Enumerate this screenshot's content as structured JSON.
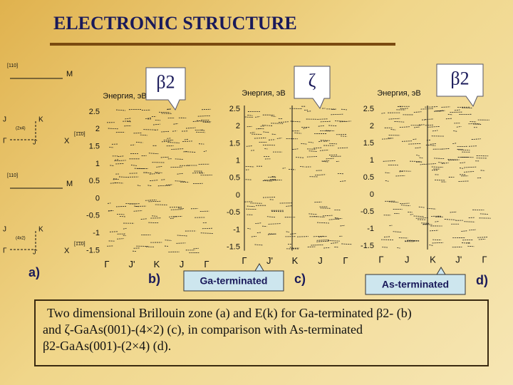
{
  "title": "ELECTRONIC STRUCTURE",
  "zones": [
    {
      "axis": "[110]",
      "top_right": "M",
      "left_mid": "J",
      "right_mid": "K",
      "cell": "(2x4)",
      "origin": "Γ",
      "bottom_mid": "J'",
      "bottom_right": "X",
      "bottom_axis": "[1͞10]"
    },
    {
      "axis": "[110]",
      "top_right": "M",
      "left_mid": "J",
      "right_mid": "K",
      "cell": "(4x2)",
      "origin": "Γ",
      "bottom_mid": "J'",
      "bottom_right": "X",
      "bottom_axis": "[1͞10]"
    }
  ],
  "panels": [
    {
      "label": "b)",
      "header": "Энергия, эВ",
      "callout": "β2",
      "yticks": [
        "2.5",
        "2",
        "1.5",
        "1",
        "0.5",
        "0",
        "-0.5",
        "-1",
        "-1.5"
      ],
      "xlabels": [
        "Γ",
        "J'",
        "K",
        "J",
        "Γ"
      ]
    },
    {
      "label": "c)",
      "header": "Энергия, эВ",
      "callout": "ζ",
      "yticks": [
        "2.5",
        "2",
        "1.5",
        "1",
        "0.5",
        "0",
        "-0.5",
        "-1",
        "-1.5"
      ],
      "xlabels": [
        "Γ",
        "J'",
        "K",
        "J",
        "Γ"
      ]
    },
    {
      "label": "d)",
      "header": "Энергия, эВ",
      "callout": "β2",
      "yticks": [
        "2.5",
        "2",
        "1.5",
        "1",
        "0.5",
        "0",
        "-0.5",
        "-1",
        "-1.5"
      ],
      "xlabels": [
        "Γ",
        "J",
        "K",
        "J'",
        "Γ"
      ]
    }
  ],
  "zone_label": "a)",
  "terminations": [
    "Ga-terminated",
    "As-terminated"
  ],
  "caption": [
    "Two dimensional Brillouin zone (a) and E(k) for Ga-terminated β2- (b)",
    "and ζ-GaAs(001)-(4×2) (c), in comparison with As-terminated",
    "β2-GaAs(001)-(2×4) (d)."
  ]
}
